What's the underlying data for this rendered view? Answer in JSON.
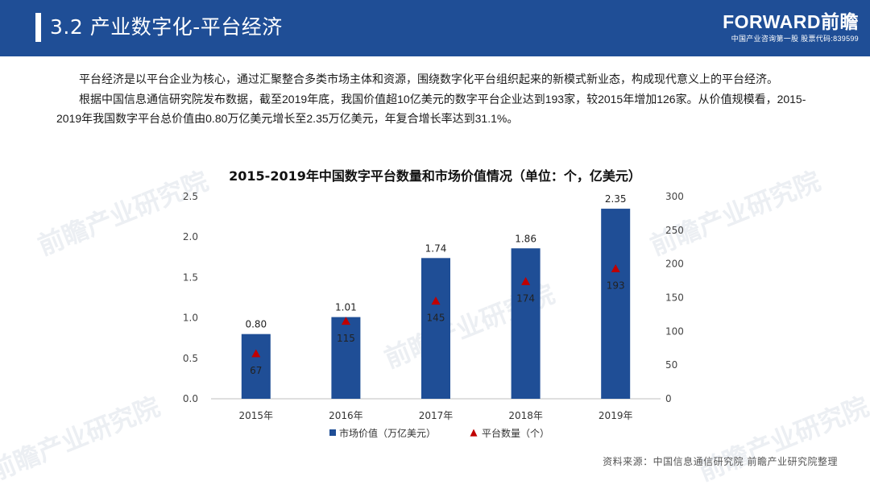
{
  "header": {
    "title": "3.2 产业数字化-平台经济",
    "brand_name": "FORWARD前瞻",
    "brand_tagline": "中国产业咨询第一股 股票代码:839599",
    "brand_color": "#1f4e96"
  },
  "intro": {
    "paragraph1": "平台经济是以平台企业为核心，通过汇聚整合多类市场主体和资源，围绕数字化平台组织起来的新模式新业态，构成现代意义上的平台经济。",
    "paragraph2": "根据中国信息通信研究院发布数据，截至2019年底，我国价值超10亿美元的数字平台企业达到193家，较2015年增加126家。从价值规模看，2015-2019年我国数字平台总价值由0.80万亿美元增长至2.35万亿美元，年复合增长率达到31.1%。"
  },
  "watermark": "前瞻产业研究院",
  "chart_data": {
    "type": "bar",
    "title": "2015-2019年中国数字平台数量和市场价值情况（单位：个，亿美元）",
    "categories": [
      "2015年",
      "2016年",
      "2017年",
      "2018年",
      "2019年"
    ],
    "series": [
      {
        "name": "市场价值（万亿美元）",
        "type": "bar",
        "axis": "left",
        "color": "#1f4e96",
        "values": [
          0.8,
          1.01,
          1.74,
          1.86,
          2.35
        ],
        "labels": [
          "0.80",
          "1.01",
          "1.74",
          "1.86",
          "2.35"
        ]
      },
      {
        "name": "平台数量（个）",
        "type": "scatter",
        "marker": "triangle",
        "axis": "right",
        "color": "#c00000",
        "values": [
          67,
          115,
          145,
          174,
          193
        ],
        "labels": [
          "67",
          "115",
          "145",
          "174",
          "193"
        ]
      }
    ],
    "y_left": {
      "min": 0,
      "max": 2.5,
      "ticks": [
        "0.0",
        "0.5",
        "1.0",
        "1.5",
        "2.0",
        "2.5"
      ]
    },
    "y_right": {
      "min": 0,
      "max": 300,
      "ticks": [
        "0",
        "50",
        "100",
        "150",
        "200",
        "250",
        "300"
      ]
    },
    "grid": false,
    "legend_position": "bottom"
  },
  "source": "资料来源：中国信息通信研究院 前瞻产业研究院整理"
}
